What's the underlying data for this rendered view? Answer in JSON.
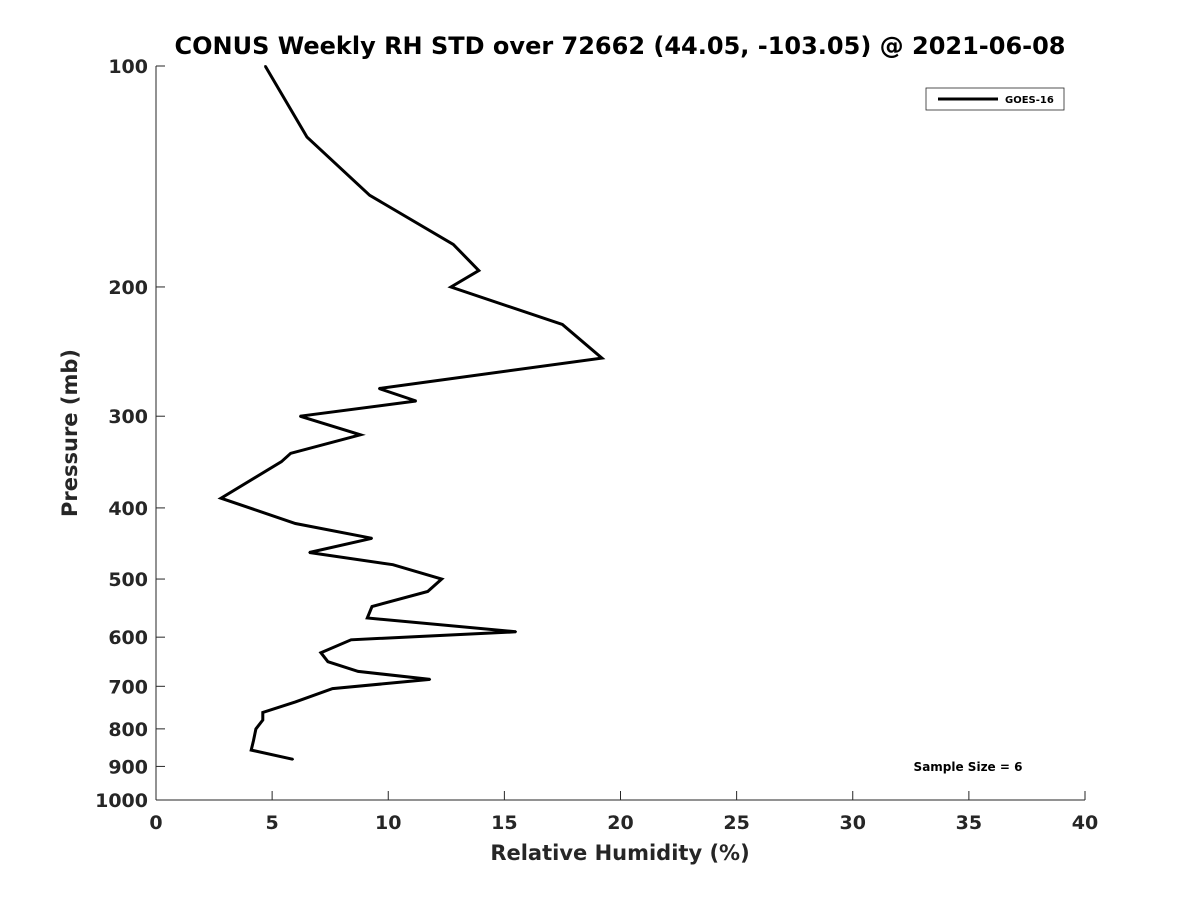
{
  "chart_data": {
    "type": "line",
    "title": "CONUS Weekly RH STD over 72662 (44.05, -103.05) @ 2021-06-08",
    "xlabel": "Relative Humidity (%)",
    "ylabel": "Pressure (mb)",
    "xlim": [
      0,
      40
    ],
    "ylim": [
      100,
      1000
    ],
    "y_scale": "log",
    "y_reversed": true,
    "x_ticks": [
      "0",
      "5",
      "10",
      "15",
      "20",
      "25",
      "30",
      "35",
      "40"
    ],
    "y_ticks": [
      "100",
      "200",
      "300",
      "400",
      "500",
      "600",
      "700",
      "800",
      "900",
      "1000"
    ],
    "grid": false,
    "legend_position": "top-right",
    "annotation": "Sample Size = 6",
    "series": [
      {
        "name": "GOES-16",
        "color": "#000000",
        "points": [
          {
            "x": 4.7,
            "y": 100
          },
          {
            "x": 6.5,
            "y": 125
          },
          {
            "x": 9.2,
            "y": 150
          },
          {
            "x": 12.8,
            "y": 175
          },
          {
            "x": 13.9,
            "y": 190
          },
          {
            "x": 12.7,
            "y": 200
          },
          {
            "x": 17.5,
            "y": 225
          },
          {
            "x": 19.2,
            "y": 250
          },
          {
            "x": 9.6,
            "y": 275
          },
          {
            "x": 11.2,
            "y": 286
          },
          {
            "x": 6.2,
            "y": 300
          },
          {
            "x": 8.8,
            "y": 318
          },
          {
            "x": 5.8,
            "y": 337
          },
          {
            "x": 5.4,
            "y": 346
          },
          {
            "x": 2.8,
            "y": 388
          },
          {
            "x": 6.0,
            "y": 420
          },
          {
            "x": 9.3,
            "y": 440
          },
          {
            "x": 6.6,
            "y": 460
          },
          {
            "x": 10.2,
            "y": 478
          },
          {
            "x": 12.3,
            "y": 500
          },
          {
            "x": 11.7,
            "y": 520
          },
          {
            "x": 9.3,
            "y": 545
          },
          {
            "x": 9.1,
            "y": 565
          },
          {
            "x": 15.5,
            "y": 590
          },
          {
            "x": 8.4,
            "y": 605
          },
          {
            "x": 7.1,
            "y": 630
          },
          {
            "x": 7.4,
            "y": 648
          },
          {
            "x": 8.7,
            "y": 668
          },
          {
            "x": 11.8,
            "y": 685
          },
          {
            "x": 7.6,
            "y": 705
          },
          {
            "x": 6.0,
            "y": 735
          },
          {
            "x": 4.6,
            "y": 760
          },
          {
            "x": 4.6,
            "y": 778
          },
          {
            "x": 4.3,
            "y": 800
          },
          {
            "x": 4.2,
            "y": 830
          },
          {
            "x": 4.1,
            "y": 855
          },
          {
            "x": 5.9,
            "y": 880
          }
        ]
      }
    ]
  }
}
